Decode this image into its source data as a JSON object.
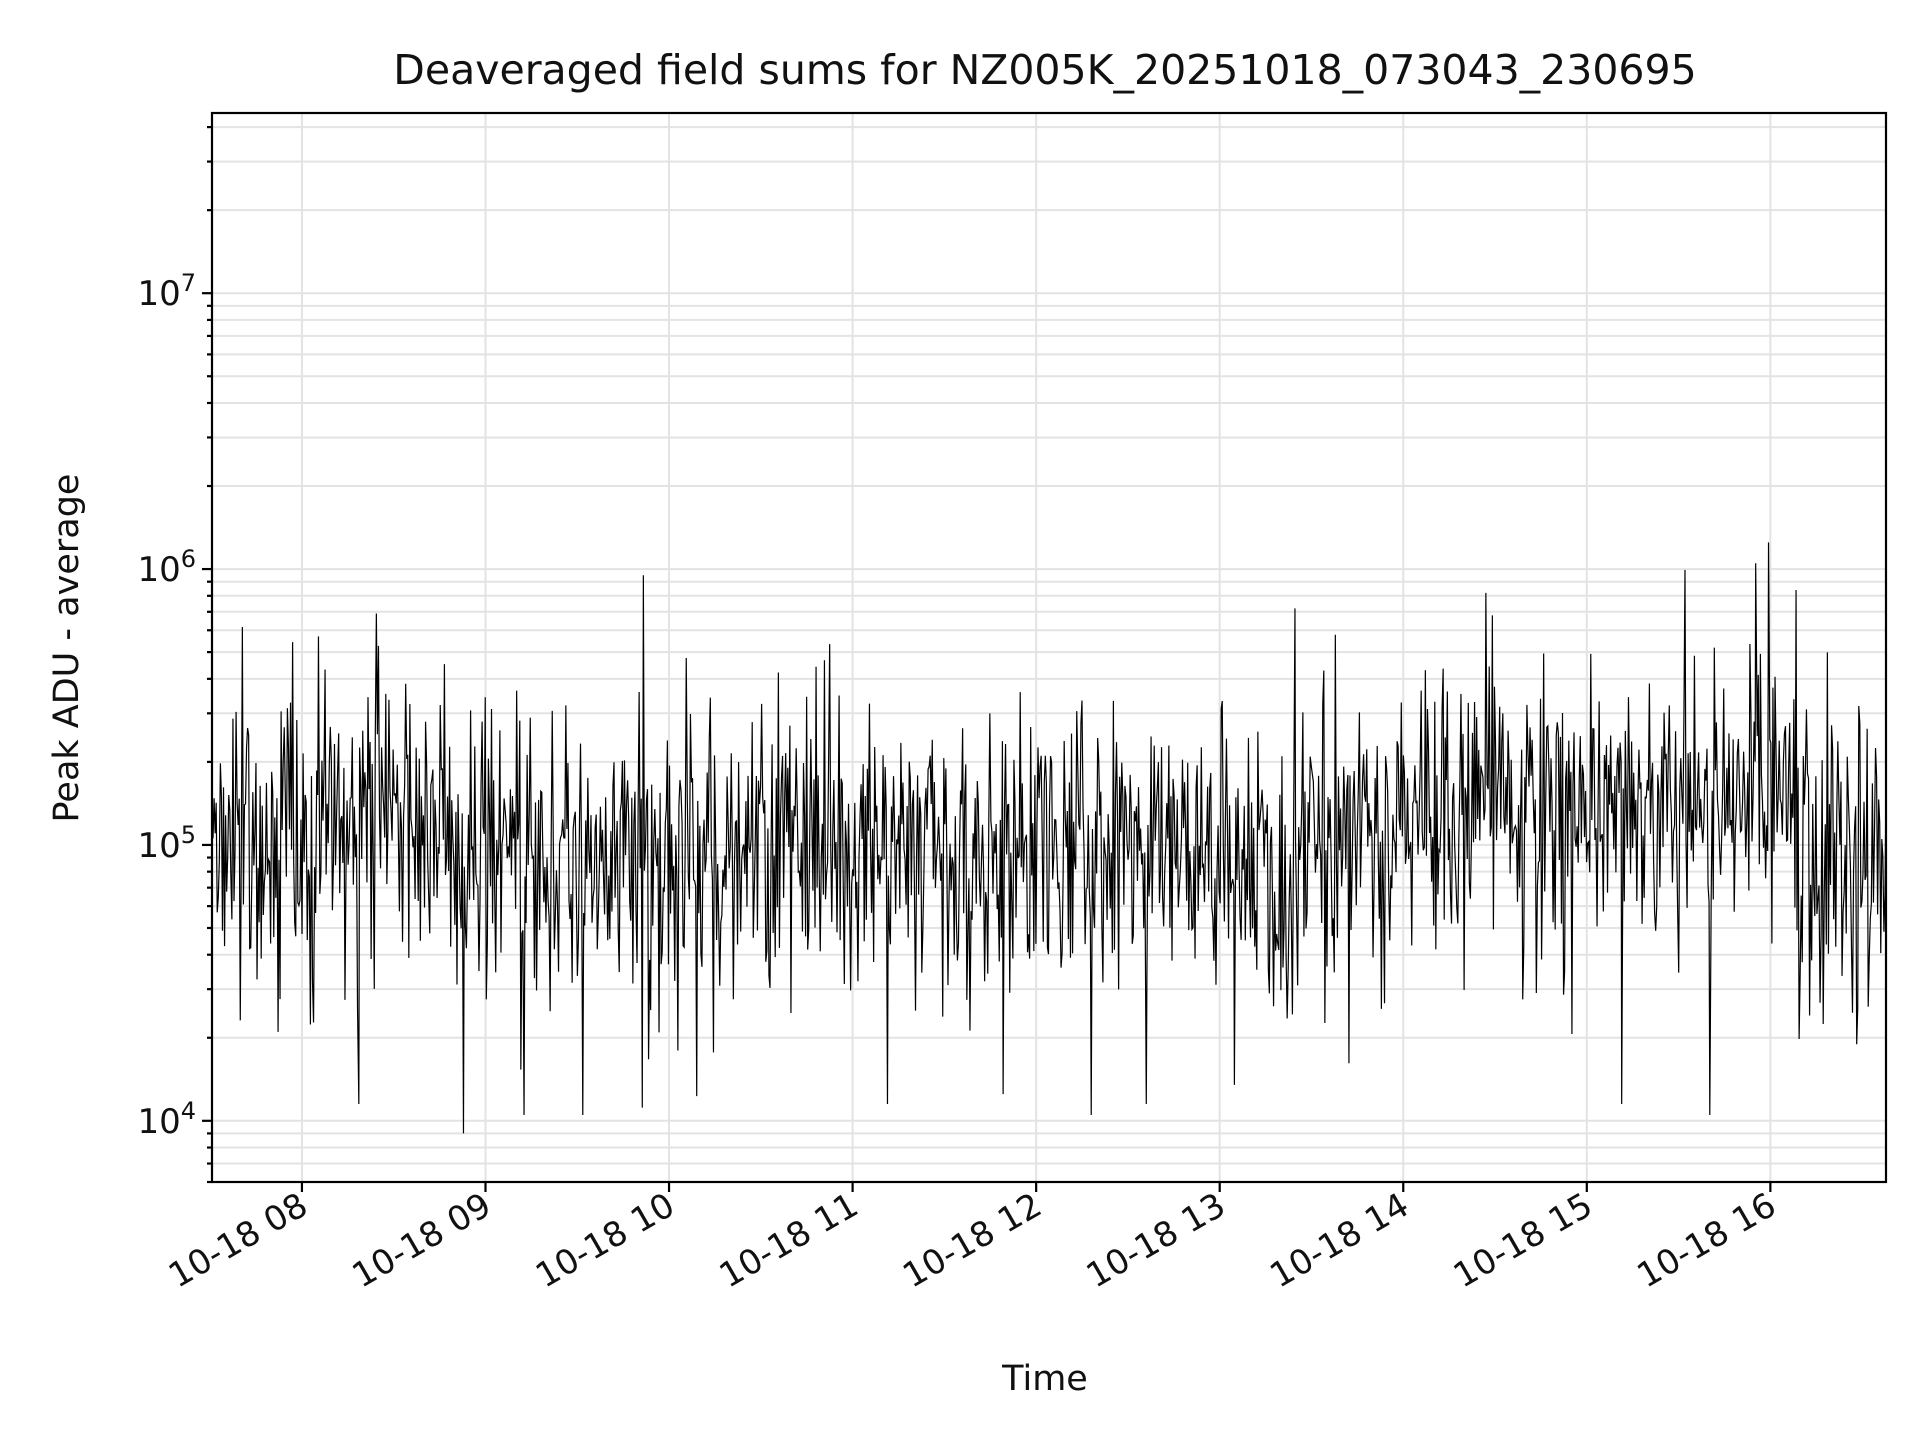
{
  "chart_data": {
    "type": "line",
    "title": "Deaveraged field sums for NZ005K_20251018_073043_230695",
    "xlabel": "Time",
    "ylabel": "Peak ADU - average",
    "yscale": "log",
    "ylim": [
      6000,
      45000000
    ],
    "xlim_hours": [
      7.51,
      16.63
    ],
    "grid": true,
    "x_ticks": [
      {
        "hour": 8,
        "label": "10-18 08"
      },
      {
        "hour": 9,
        "label": "10-18 09"
      },
      {
        "hour": 10,
        "label": "10-18 10"
      },
      {
        "hour": 11,
        "label": "10-18 11"
      },
      {
        "hour": 12,
        "label": "10-18 12"
      },
      {
        "hour": 13,
        "label": "10-18 13"
      },
      {
        "hour": 14,
        "label": "10-18 14"
      },
      {
        "hour": 15,
        "label": "10-18 15"
      },
      {
        "hour": 16,
        "label": "10-18 16"
      }
    ],
    "y_ticks": [
      {
        "value": 10000,
        "base": "10",
        "exp": "4"
      },
      {
        "value": 100000,
        "base": "10",
        "exp": "5"
      },
      {
        "value": 1000000,
        "base": "10",
        "exp": "6"
      },
      {
        "value": 10000000,
        "base": "10",
        "exp": "7"
      }
    ],
    "series": [
      {
        "name": "deaveraged field sum",
        "color": "#000000",
        "time_start_hour": 7.51,
        "time_end_hour": 16.63,
        "n_points": 1600,
        "typical_value": 100000,
        "minimum_value": 9000,
        "maximum_value": 1250000,
        "notable_points": [
          {
            "hour": 7.87,
            "value": 21000
          },
          {
            "hour": 8.09,
            "value": 570000
          },
          {
            "hour": 8.31,
            "value": 11500
          },
          {
            "hour": 8.88,
            "value": 9000
          },
          {
            "hour": 9.21,
            "value": 10500
          },
          {
            "hour": 9.53,
            "value": 10500
          },
          {
            "hour": 9.86,
            "value": 950000
          },
          {
            "hour": 11.19,
            "value": 11500
          },
          {
            "hour": 11.82,
            "value": 12500
          },
          {
            "hour": 12.3,
            "value": 10500
          },
          {
            "hour": 12.6,
            "value": 11500
          },
          {
            "hour": 13.08,
            "value": 13500
          },
          {
            "hour": 13.41,
            "value": 720000
          },
          {
            "hour": 14.45,
            "value": 820000
          },
          {
            "hour": 15.19,
            "value": 11500
          },
          {
            "hour": 15.67,
            "value": 10500
          },
          {
            "hour": 15.92,
            "value": 1050000
          },
          {
            "hour": 15.99,
            "value": 1250000
          },
          {
            "hour": 16.14,
            "value": 840000
          }
        ]
      }
    ]
  }
}
